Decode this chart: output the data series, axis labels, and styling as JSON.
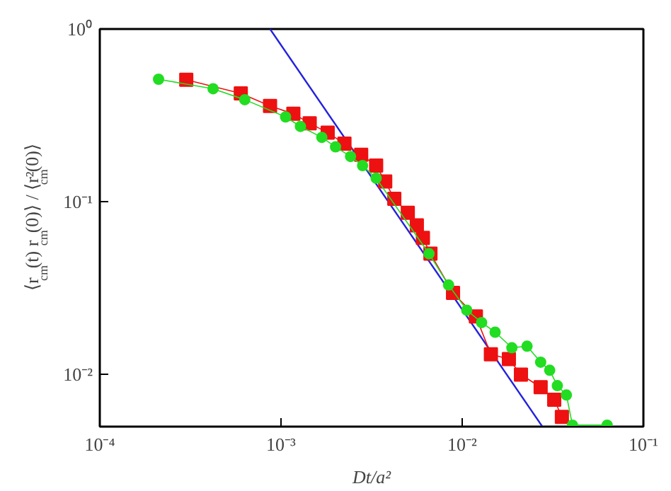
{
  "chart_data": {
    "type": "line",
    "log": "xy",
    "xlabel": "Dt/a²",
    "ylabel": "⟨r$_{cm}$(t) r$_{cm}$(0)⟩ / ⟨r²$_{cm}$(0)⟩",
    "xlim": [
      0.0001,
      0.1
    ],
    "ylim": [
      0.005,
      1
    ],
    "xticks": [
      {
        "value": 0.0001,
        "label": "10⁻⁴"
      },
      {
        "value": 0.001,
        "label": "10⁻³"
      },
      {
        "value": 0.01,
        "label": "10⁻²"
      },
      {
        "value": 0.1,
        "label": "10⁻¹"
      }
    ],
    "yticks": [
      {
        "value": 0.01,
        "label": "10⁻²"
      },
      {
        "value": 0.1,
        "label": "10⁻¹"
      },
      {
        "value": 1,
        "label": "10⁰"
      }
    ],
    "grid": false,
    "series": [
      {
        "color": "#2222dd",
        "marker": "none",
        "x": [
          0.00087,
          0.0277
        ],
        "values": [
          1,
          0.005
        ]
      },
      {
        "color": "#ee1111",
        "marker": "square",
        "x": [
          0.0003,
          0.0006,
          0.00087,
          0.00117,
          0.00144,
          0.00181,
          0.00224,
          0.00277,
          0.00335,
          0.00376,
          0.00422,
          0.00501,
          0.00562,
          0.00607,
          0.00668,
          0.0089,
          0.0119,
          0.0144,
          0.0181,
          0.0211,
          0.0271,
          0.0322,
          0.0355
        ],
        "values": [
          0.508,
          0.424,
          0.359,
          0.323,
          0.285,
          0.251,
          0.217,
          0.187,
          0.162,
          0.131,
          0.104,
          0.0864,
          0.0731,
          0.0618,
          0.0501,
          0.0297,
          0.0217,
          0.0131,
          0.0123,
          0.01,
          0.00846,
          0.00716,
          0.00569
        ]
      },
      {
        "color": "#22dd22",
        "marker": "circle",
        "x": [
          0.000211,
          0.000422,
          0.000631,
          0.00106,
          0.00128,
          0.00168,
          0.002,
          0.00242,
          0.00282,
          0.00335,
          0.00656,
          0.00841,
          0.0106,
          0.0128,
          0.0152,
          0.0188,
          0.0228,
          0.0271,
          0.0304,
          0.0335,
          0.0376,
          0.0406,
          0.0631
        ],
        "values": [
          0.512,
          0.451,
          0.39,
          0.31,
          0.273,
          0.236,
          0.208,
          0.183,
          0.162,
          0.137,
          0.0501,
          0.033,
          0.0236,
          0.02,
          0.0176,
          0.0143,
          0.0146,
          0.0118,
          0.0106,
          0.00863,
          0.00762,
          0.0051,
          0.0051
        ]
      }
    ]
  }
}
